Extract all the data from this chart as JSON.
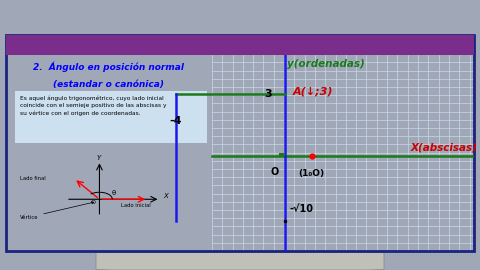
{
  "outer_bg": "#a0a8b8",
  "top_bar_bg": "#c8c8c8",
  "panel_border": "#1a237e",
  "purple_bar": "#7B2D8B",
  "white_panel": "#ffffff",
  "grid_color": "#c8d8e8",
  "body_bg": "#cce0f0",
  "title1": "2.  Ángulo en posición normal",
  "title2": "(estandar o canónica)",
  "body_text": "Es aquel ángulo trigonométrico, cuyo lado inicial\ncoincide con el semieje positivo de las abscisas y\nsu vértice con el origen de coordenadas.",
  "label_ladofinal": "Lado final",
  "label_ladoinicial": "Lado inicial",
  "label_vertice": "Vértice",
  "label_Y": "Y",
  "label_X": "X",
  "label_O_small": "O",
  "label_theta": "θ",
  "green": "#1a7a1a",
  "blue": "#1a1aee",
  "red": "#cc0000",
  "black": "#111111",
  "right_y_label": "y(ordenadas)",
  "right_A_label": "A(↓;3)",
  "right_X_label": "X(abscisas)",
  "right_sqrt10": "-√10",
  "right_minus4": "-4",
  "right_3": "3",
  "right_O": "O",
  "right_1_0": "(1₀O)",
  "bottom_toolbar_bg": "#b0b0b0"
}
